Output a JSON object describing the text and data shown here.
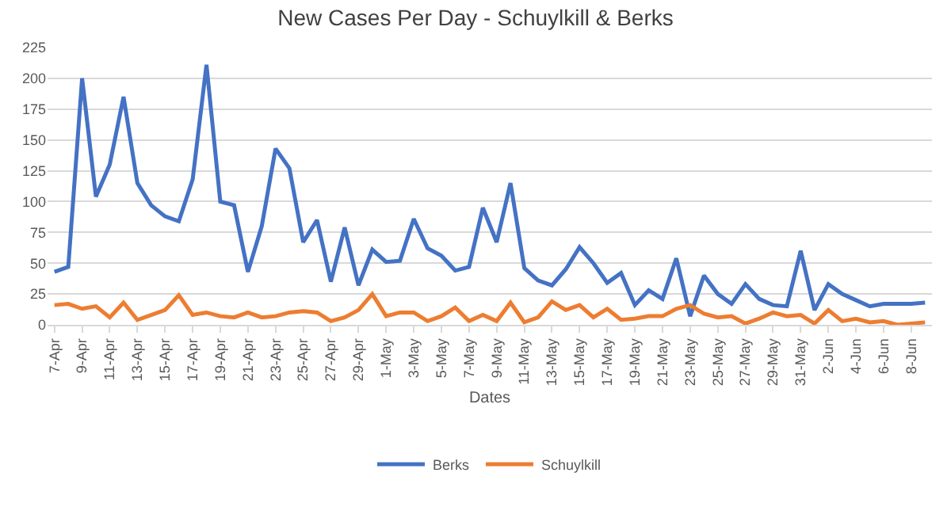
{
  "chart_data": {
    "type": "line",
    "title": "New Cases Per Day - Schuylkill & Berks",
    "xlabel": "Dates",
    "categories": [
      "7-Apr",
      null,
      "9-Apr",
      null,
      "11-Apr",
      null,
      "13-Apr",
      null,
      "15-Apr",
      null,
      "17-Apr",
      null,
      "19-Apr",
      null,
      "21-Apr",
      null,
      "23-Apr",
      null,
      "25-Apr",
      null,
      "27-Apr",
      null,
      "29-Apr",
      null,
      "1-May",
      null,
      "3-May",
      null,
      "5-May",
      null,
      "7-May",
      null,
      "9-May",
      null,
      "11-May",
      null,
      "13-May",
      null,
      "15-May",
      null,
      "17-May",
      null,
      "19-May",
      null,
      "21-May",
      null,
      "23-May",
      null,
      "25-May",
      null,
      "27-May",
      null,
      "29-May",
      null,
      "31-May",
      null,
      "2-Jun",
      null,
      "4-Jun",
      null,
      "6-Jun",
      null,
      "8-Jun",
      null
    ],
    "series": [
      {
        "name": "Berks",
        "color": "#4472c4",
        "values": [
          43,
          47,
          200,
          104,
          130,
          185,
          115,
          97,
          88,
          84,
          118,
          211,
          100,
          97,
          43,
          80,
          143,
          127,
          67,
          85,
          35,
          79,
          32,
          61,
          51,
          52,
          86,
          62,
          56,
          44,
          47,
          95,
          67,
          115,
          46,
          36,
          32,
          45,
          63,
          50,
          34,
          42,
          16,
          28,
          21,
          54,
          7,
          40,
          25,
          17,
          33,
          21,
          16,
          15,
          60,
          12,
          33,
          25,
          20,
          15,
          17,
          17,
          17,
          18
        ]
      },
      {
        "name": "Schuylkill",
        "color": "#ed7d31",
        "values": [
          16,
          17,
          13,
          15,
          6,
          18,
          4,
          8,
          12,
          24,
          8,
          10,
          7,
          6,
          10,
          6,
          7,
          10,
          11,
          10,
          3,
          6,
          12,
          25,
          7,
          10,
          10,
          3,
          7,
          14,
          3,
          8,
          3,
          18,
          2,
          6,
          19,
          12,
          16,
          6,
          13,
          4,
          5,
          7,
          7,
          13,
          16,
          9,
          6,
          7,
          1,
          5,
          10,
          7,
          8,
          1,
          12,
          3,
          5,
          2,
          3,
          0,
          1,
          2
        ]
      }
    ],
    "ylim": [
      0,
      225
    ],
    "yticks": [
      0,
      25,
      50,
      75,
      100,
      125,
      150,
      175,
      200,
      225
    ],
    "grid": "y",
    "legend": "bottom",
    "marker": "none",
    "line_style": "solid"
  }
}
